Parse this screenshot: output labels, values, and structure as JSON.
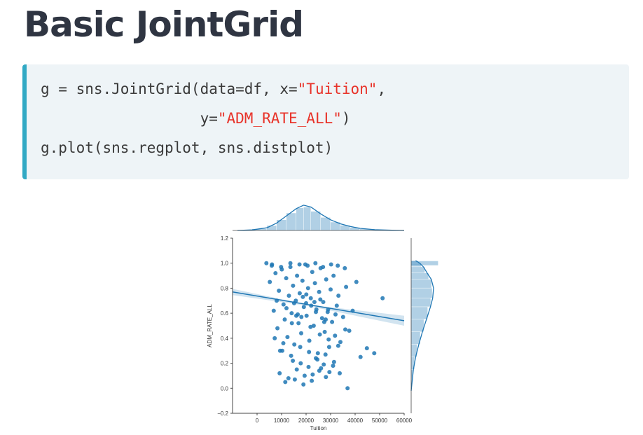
{
  "title": "Basic JointGrid",
  "code": {
    "line1": {
      "pre": "g = sns.JointGrid(data=df, x=",
      "str": "\"Tuition\"",
      "post": ","
    },
    "line2": {
      "pre": "                  y=",
      "str": "\"ADM_RATE_ALL\"",
      "post": ")"
    },
    "line3": {
      "pre": "g.plot(sns.regplot, sns.distplot)",
      "str": "",
      "post": ""
    }
  },
  "colors": {
    "accent_bar": "#31a9c4",
    "code_bg": "#eef4f7",
    "string": "#e8332a",
    "series": "#1f77b4"
  },
  "chart_data": {
    "type": "scatter",
    "xlabel": "Tuition",
    "ylabel": "ADM_RATE_ALL",
    "xlim": [
      -10000,
      60000
    ],
    "ylim": [
      -0.2,
      1.2
    ],
    "xticks": [
      0,
      10000,
      20000,
      30000,
      40000,
      50000,
      60000
    ],
    "xtick_labels": [
      "0",
      "10000",
      "20000",
      "30000",
      "40000",
      "50000",
      "60000"
    ],
    "yticks": [
      -0.2,
      0.0,
      0.2,
      0.4,
      0.6,
      0.8,
      1.0,
      1.2
    ],
    "ytick_labels": [
      "−0.2",
      "0.0",
      "0.2",
      "0.4",
      "0.6",
      "0.8",
      "1.0",
      "1.2"
    ],
    "regression": {
      "x": [
        -10000,
        60000
      ],
      "y": [
        0.77,
        0.54
      ]
    },
    "points_x": [
      3800,
      5200,
      6100,
      6800,
      7500,
      8300,
      8900,
      9400,
      10100,
      10800,
      11300,
      11900,
      12400,
      13000,
      13600,
      14100,
      14700,
      15200,
      15800,
      16300,
      16900,
      17400,
      18000,
      18500,
      19100,
      19700,
      20200,
      20800,
      21300,
      21900,
      22500,
      23100,
      23600,
      24200,
      24800,
      25300,
      25900,
      26500,
      27000,
      27600,
      28200,
      28800,
      29400,
      30000,
      30600,
      31200,
      31800,
      32500,
      33200,
      34000,
      35100,
      36300,
      37600,
      39000,
      40500,
      42200,
      44800,
      47800,
      51200,
      9200,
      12800,
      16200,
      19400,
      22300,
      25400,
      28100,
      31000,
      33700,
      14600,
      17800,
      21000,
      24000,
      27200,
      11500,
      15400,
      18900,
      22700,
      26100,
      29500,
      6000,
      9800,
      13600,
      17300,
      20600,
      23800,
      26900,
      30200,
      32900,
      35800,
      8000,
      12000,
      16000,
      20000,
      24000,
      28000,
      32000,
      36000,
      7200,
      10700,
      14200,
      18100,
      21800,
      25600,
      29200,
      33100,
      10300,
      13900,
      17600,
      21200,
      24600,
      27900,
      31400,
      15100,
      18700,
      22100,
      25800,
      29000,
      16600,
      20100,
      23400,
      27400,
      36900
    ],
    "points_y": [
      1.0,
      0.85,
      0.99,
      0.62,
      0.92,
      0.48,
      0.78,
      0.3,
      0.95,
      0.67,
      0.55,
      0.88,
      0.41,
      0.74,
      0.97,
      0.6,
      0.82,
      0.35,
      0.7,
      0.9,
      0.52,
      0.76,
      0.44,
      0.86,
      0.65,
      0.99,
      0.58,
      0.8,
      0.38,
      0.72,
      0.93,
      0.5,
      0.84,
      0.63,
      0.28,
      0.77,
      0.96,
      0.56,
      0.69,
      0.45,
      0.87,
      0.61,
      0.33,
      0.79,
      0.53,
      0.9,
      0.42,
      0.66,
      0.74,
      0.37,
      0.57,
      0.81,
      0.46,
      0.62,
      0.85,
      0.25,
      0.32,
      0.28,
      0.72,
      0.12,
      0.08,
      0.15,
      0.1,
      0.06,
      0.14,
      0.09,
      0.18,
      0.12,
      0.22,
      0.2,
      0.17,
      0.24,
      0.19,
      0.05,
      0.07,
      0.03,
      0.11,
      0.16,
      0.13,
      0.98,
      0.97,
      1.0,
      0.99,
      0.98,
      1.0,
      0.97,
      0.99,
      0.98,
      0.96,
      0.7,
      0.64,
      0.58,
      0.68,
      0.61,
      0.55,
      0.59,
      0.47,
      0.4,
      0.36,
      0.52,
      0.57,
      0.49,
      0.43,
      0.39,
      0.34,
      0.3,
      0.26,
      0.33,
      0.29,
      0.23,
      0.27,
      0.21,
      0.68,
      0.73,
      0.66,
      0.71,
      0.63,
      0.59,
      0.75,
      0.69,
      0.53,
      0.0
    ],
    "marginal_x_kde": {
      "x": [
        -8000,
        -2000,
        4000,
        8000,
        12000,
        16000,
        19000,
        22000,
        26000,
        30000,
        34000,
        38000,
        42000,
        48000,
        55000,
        60000
      ],
      "density": [
        0.0,
        0.02,
        0.1,
        0.28,
        0.55,
        0.82,
        0.95,
        0.88,
        0.62,
        0.4,
        0.25,
        0.15,
        0.08,
        0.03,
        0.01,
        0.0
      ]
    },
    "marginal_y_kde": {
      "y": [
        -0.02,
        0.05,
        0.15,
        0.25,
        0.35,
        0.45,
        0.55,
        0.65,
        0.72,
        0.8,
        0.87,
        0.92,
        0.97,
        1.0,
        1.02
      ],
      "density": [
        0.0,
        0.04,
        0.1,
        0.2,
        0.34,
        0.5,
        0.68,
        0.86,
        0.96,
        1.0,
        0.9,
        0.72,
        0.55,
        0.38,
        0.2
      ]
    },
    "marginal_y_spike": {
      "y": 1.0,
      "density": 1.2
    }
  }
}
